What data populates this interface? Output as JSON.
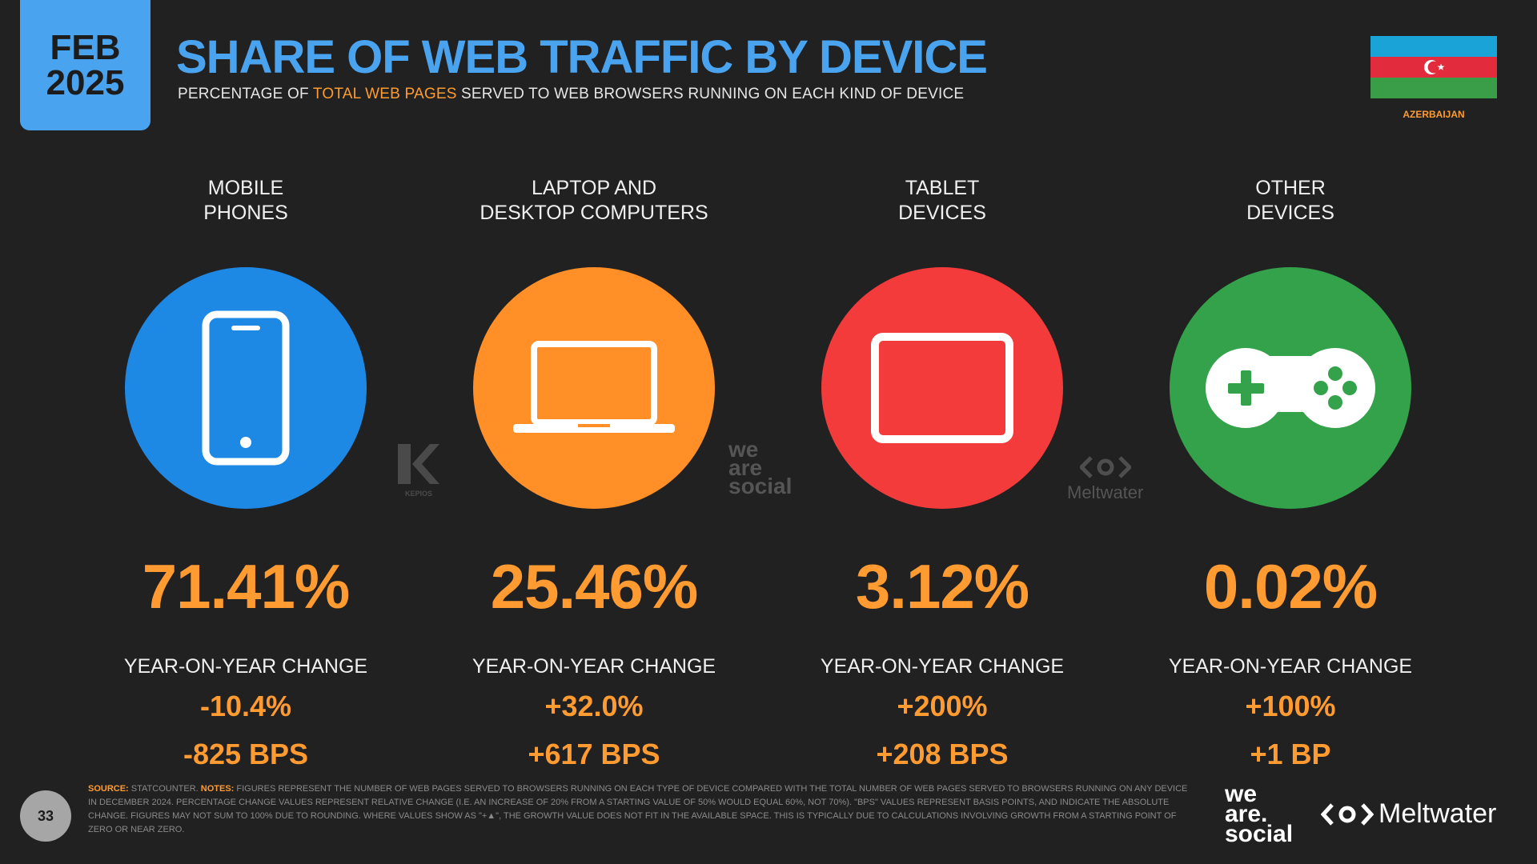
{
  "badge": {
    "month": "FEB",
    "year": "2025"
  },
  "header": {
    "title": "SHARE OF WEB TRAFFIC BY DEVICE",
    "subtitle_pre": "PERCENTAGE OF ",
    "subtitle_hl": "TOTAL WEB PAGES",
    "subtitle_post": " SERVED TO WEB BROWSERS RUNNING ON EACH KIND OF DEVICE"
  },
  "country": {
    "name": "AZERBAIJAN"
  },
  "yoy_label": "YEAR-ON-YEAR CHANGE",
  "devices": [
    {
      "label_line1": "MOBILE",
      "label_line2": "PHONES",
      "share": "71.41%",
      "yoy_pct": "-10.4%",
      "yoy_bps": "-825 BPS",
      "color": "#1e88e5",
      "icon": "mobile-phone-icon"
    },
    {
      "label_line1": "LAPTOP AND",
      "label_line2": "DESKTOP COMPUTERS",
      "share": "25.46%",
      "yoy_pct": "+32.0%",
      "yoy_bps": "+617 BPS",
      "color": "#ff8f26",
      "icon": "laptop-icon"
    },
    {
      "label_line1": "TABLET",
      "label_line2": "DEVICES",
      "share": "3.12%",
      "yoy_pct": "+200%",
      "yoy_bps": "+208 BPS",
      "color": "#f33b3b",
      "icon": "tablet-icon"
    },
    {
      "label_line1": "OTHER",
      "label_line2": "DEVICES",
      "share": "0.02%",
      "yoy_pct": "+100%",
      "yoy_bps": "+1 BP",
      "color": "#34a24a",
      "icon": "gamepad-icon"
    }
  ],
  "watermarks": {
    "kepios": "KEPIOS",
    "was_1": "we",
    "was_2": "are",
    "was_3": "social",
    "meltwater": "Meltwater"
  },
  "footer": {
    "page_number": "33",
    "source_label": "SOURCE:",
    "source_text": " STATCOUNTER. ",
    "notes_label": "NOTES:",
    "notes_text": " FIGURES REPRESENT THE NUMBER OF WEB PAGES SERVED TO BROWSERS RUNNING ON EACH TYPE OF DEVICE COMPARED WITH THE TOTAL NUMBER OF WEB PAGES SERVED TO BROWSERS RUNNING ON ANY DEVICE IN DECEMBER 2024. PERCENTAGE CHANGE VALUES REPRESENT RELATIVE CHANGE (I.E. AN INCREASE OF 20% FROM A STARTING VALUE OF 50% WOULD EQUAL 60%, NOT 70%). \"BPS\" VALUES REPRESENT BASIS POINTS, AND INDICATE THE ABSOLUTE CHANGE. FIGURES MAY NOT SUM TO 100% DUE TO ROUNDING. WHERE VALUES SHOW AS \"+▲\", THE GROWTH VALUE DOES NOT FIT IN THE AVAILABLE SPACE. THIS IS TYPICALLY DUE TO CALCULATIONS INVOLVING GROWTH FROM A STARTING POINT OF ZERO OR NEAR ZERO.",
    "logo_was_1": "we",
    "logo_was_2": "are.",
    "logo_was_3": "social",
    "logo_meltwater": "Meltwater"
  }
}
